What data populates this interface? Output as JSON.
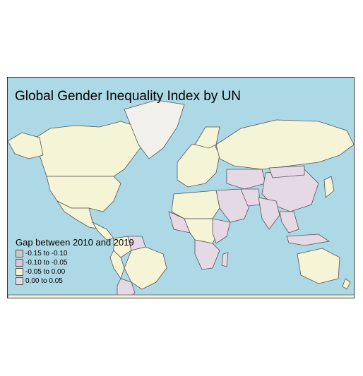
{
  "map": {
    "title": "Global Gender Inequality Index by UN",
    "ocean_color": "#add8e6",
    "border_color": "#555555",
    "legend": {
      "title": "Gap between 2010 and 2019",
      "items": [
        {
          "label": "-0.15 to -0.10",
          "color": "#c8c8d2"
        },
        {
          "label": "-0.10 to -0.05",
          "color": "#d7c8dc"
        },
        {
          "label": "-0.05 to 0.00",
          "color": "#f6f4d6"
        },
        {
          "label": "0.00 to 0.05",
          "color": "#e6d9e6"
        }
      ]
    },
    "colors": {
      "positive_gap": "#e6d9e6",
      "negative_gap": "#f6f4d6",
      "greenland": "#f2f0ea"
    }
  }
}
